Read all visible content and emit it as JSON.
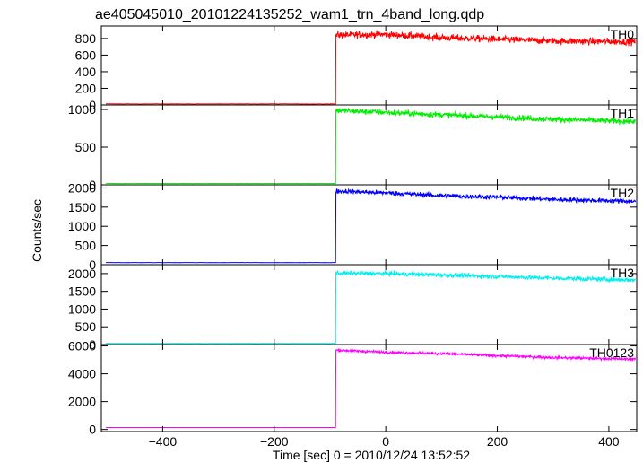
{
  "chart_data": {
    "type": "line",
    "title": "ae405045010_20101224135252_wam1_trn_4band_long.qdp",
    "xlabel": "Time [sec] 0 = 2010/12/24 13:52:52",
    "ylabel": "Counts/sec",
    "xlim": [
      -510,
      450
    ],
    "x_ticks": [
      -400,
      -200,
      0,
      200,
      400
    ],
    "x_ticklabels": [
      "−400",
      "−200",
      "0",
      "200",
      "400"
    ],
    "rise_time": -90,
    "time_end": 448,
    "panels": [
      {
        "name": "TH0",
        "color": "#ff0000",
        "ylim": [
          0,
          950
        ],
        "yticks": [
          0,
          200,
          400,
          600,
          800
        ],
        "baseline": 12,
        "profile": [
          [
            -90,
            840
          ],
          [
            0,
            850
          ],
          [
            100,
            810
          ],
          [
            200,
            790
          ],
          [
            300,
            770
          ],
          [
            448,
            760
          ]
        ],
        "noise": 30
      },
      {
        "name": "TH1",
        "color": "#00ee00",
        "ylim": [
          0,
          1060
        ],
        "yticks": [
          0,
          500,
          1000
        ],
        "baseline": 18,
        "profile": [
          [
            -90,
            990
          ],
          [
            0,
            960
          ],
          [
            100,
            930
          ],
          [
            200,
            900
          ],
          [
            300,
            870
          ],
          [
            448,
            840
          ]
        ],
        "noise": 28
      },
      {
        "name": "TH2",
        "color": "#0000ff",
        "ylim": [
          0,
          2080
        ],
        "yticks": [
          0,
          500,
          1000,
          1500,
          2000
        ],
        "baseline": 55,
        "profile": [
          [
            -90,
            1920
          ],
          [
            0,
            1870
          ],
          [
            100,
            1800
          ],
          [
            200,
            1760
          ],
          [
            300,
            1700
          ],
          [
            448,
            1650
          ]
        ],
        "noise": 45
      },
      {
        "name": "TH3",
        "color": "#00eeee",
        "ylim": [
          0,
          2250
        ],
        "yticks": [
          0,
          500,
          1000,
          1500,
          2000
        ],
        "baseline": 35,
        "profile": [
          [
            -90,
            2010
          ],
          [
            0,
            2000
          ],
          [
            100,
            1960
          ],
          [
            200,
            1920
          ],
          [
            300,
            1870
          ],
          [
            448,
            1820
          ]
        ],
        "noise": 45
      },
      {
        "name": "TH0123",
        "color": "#ff00ff",
        "ylim": [
          -150,
          6100
        ],
        "yticks": [
          0,
          2000,
          4000,
          6000
        ],
        "baseline": 140,
        "profile": [
          [
            -90,
            5700
          ],
          [
            0,
            5550
          ],
          [
            100,
            5450
          ],
          [
            200,
            5300
          ],
          [
            300,
            5170
          ],
          [
            448,
            5050
          ]
        ],
        "noise": 70
      }
    ]
  }
}
